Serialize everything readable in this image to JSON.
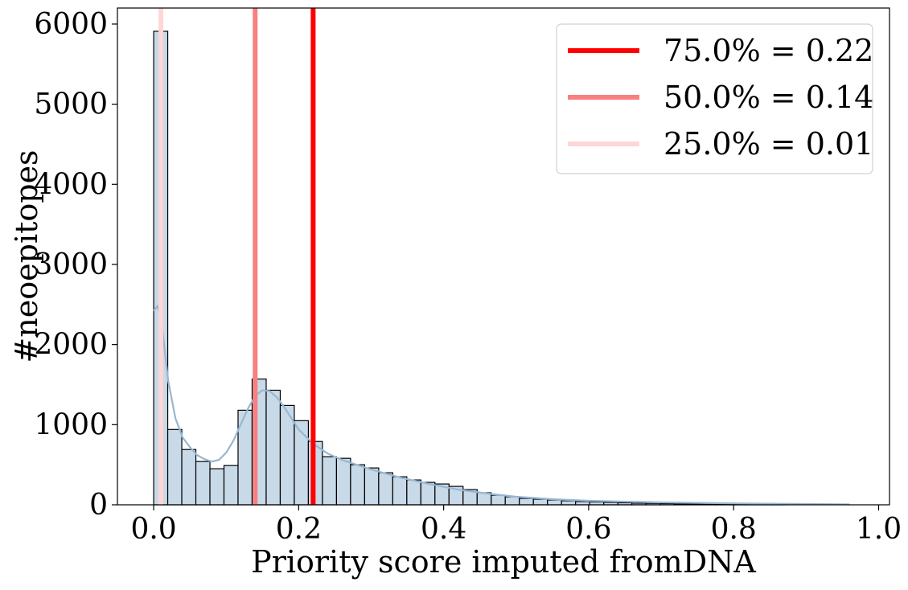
{
  "chart_data": {
    "type": "bar",
    "title": "",
    "xlabel": "Priority score imputed fromDNA",
    "ylabel": "#neoepitopes",
    "xlim": [
      -0.05,
      1.015
    ],
    "ylim": [
      0,
      6200
    ],
    "xticks": [
      "0.0",
      "0.2",
      "0.4",
      "0.6",
      "0.8",
      "1.0"
    ],
    "xtick_values": [
      0.0,
      0.2,
      0.4,
      0.6,
      0.8,
      1.0
    ],
    "yticks": [
      "0",
      "1000",
      "2000",
      "3000",
      "4000",
      "5000",
      "6000"
    ],
    "ytick_values": [
      0,
      1000,
      2000,
      3000,
      4000,
      5000,
      6000
    ],
    "grid": false,
    "legend_position": "top-right",
    "bin_width": 0.0194,
    "bin_start": 0.0,
    "bar_color": "#c8d9e8",
    "bar_edge_color": "#000000",
    "values": [
      5910,
      940,
      690,
      540,
      450,
      490,
      1180,
      1570,
      1430,
      1240,
      1050,
      790,
      600,
      580,
      500,
      460,
      400,
      350,
      310,
      280,
      260,
      230,
      190,
      150,
      120,
      100,
      80,
      70,
      60,
      50,
      40,
      35,
      30,
      25,
      20,
      18,
      15,
      12,
      10,
      8,
      6,
      5,
      4,
      3,
      2
    ],
    "kde": {
      "color": "#97b7d3",
      "x": [
        0.0,
        0.005,
        0.01,
        0.015,
        0.02,
        0.03,
        0.04,
        0.05,
        0.06,
        0.07,
        0.08,
        0.09,
        0.1,
        0.11,
        0.12,
        0.13,
        0.14,
        0.15,
        0.16,
        0.17,
        0.18,
        0.19,
        0.2,
        0.22,
        0.24,
        0.26,
        0.28,
        0.3,
        0.34,
        0.38,
        0.42,
        0.46,
        0.5,
        0.55,
        0.6,
        0.7,
        0.8,
        0.9,
        0.96
      ],
      "y": [
        2420,
        2480,
        2350,
        1950,
        1550,
        1080,
        840,
        720,
        620,
        570,
        540,
        560,
        650,
        800,
        1000,
        1200,
        1360,
        1430,
        1420,
        1340,
        1220,
        1080,
        940,
        760,
        640,
        560,
        500,
        440,
        340,
        260,
        190,
        140,
        100,
        70,
        50,
        30,
        18,
        10,
        5
      ]
    },
    "lines": [
      {
        "label": "75.0% = 0.22",
        "x": 0.22,
        "color": "#ff0000"
      },
      {
        "label": "50.0% = 0.14",
        "x": 0.14,
        "color": "#f88080"
      },
      {
        "label": "25.0% = 0.01",
        "x": 0.01,
        "color": "#ffd6d6"
      }
    ]
  }
}
